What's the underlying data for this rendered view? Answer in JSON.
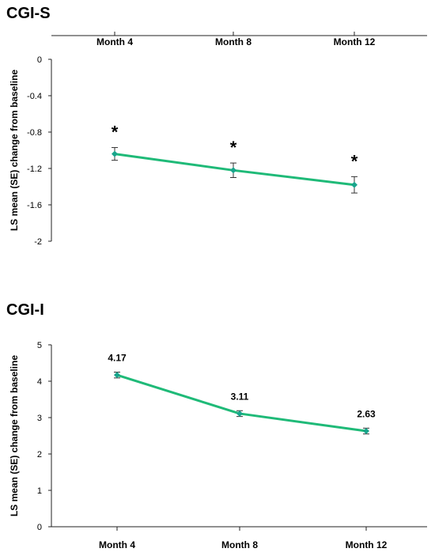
{
  "chart_data": [
    {
      "type": "line",
      "title": "CGI-S",
      "ylabel": "LS mean (SE) change from baseline",
      "xlabel": "",
      "categories": [
        "Month 4",
        "Month 8",
        "Month 12"
      ],
      "x_axis_position": "top",
      "ylim": [
        -2,
        0
      ],
      "yticks": [
        0,
        -0.4,
        -0.8,
        -1.2,
        -1.6,
        -2
      ],
      "ytick_labels": [
        "0",
        "-0.4",
        "-0.8",
        "-1.2",
        "-1.6",
        "-2"
      ],
      "grid": false,
      "series": [
        {
          "values": [
            -1.04,
            -1.22,
            -1.38
          ],
          "errors": [
            0.07,
            0.08,
            0.09
          ],
          "color": "#1fba78",
          "marker_color": "#19a58c"
        }
      ],
      "annotations": [
        "*",
        "*",
        "*"
      ]
    },
    {
      "type": "line",
      "title": "CGI-I",
      "ylabel": "LS mean (SE) change from baseline",
      "xlabel": "",
      "categories": [
        "Month 4",
        "Month 8",
        "Month 12"
      ],
      "x_axis_position": "bottom",
      "ylim": [
        0,
        5
      ],
      "yticks": [
        0,
        1,
        2,
        3,
        4,
        5
      ],
      "ytick_labels": [
        "0",
        "1",
        "2",
        "3",
        "4",
        "5"
      ],
      "grid": false,
      "series": [
        {
          "values": [
            4.17,
            3.11,
            2.63
          ],
          "errors": [
            0.08,
            0.08,
            0.08
          ],
          "color": "#1fba78",
          "marker_color": "#19a58c"
        }
      ],
      "annotations": [
        "4.17",
        "3.11",
        "2.63"
      ]
    }
  ]
}
